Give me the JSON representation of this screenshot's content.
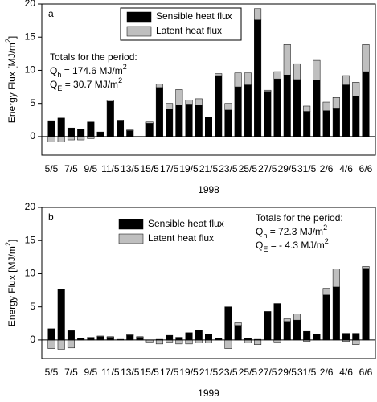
{
  "chart_data": [
    {
      "type": "bar",
      "stacked": true,
      "panel_label": "a",
      "categories": [
        "5/5",
        null,
        "7/5",
        null,
        "9/5",
        null,
        "11/5",
        null,
        "13/5",
        null,
        "15/5",
        null,
        "17/5",
        null,
        "19/5",
        null,
        "21/5",
        null,
        "23/5",
        null,
        "25/5",
        null,
        "27/5",
        null,
        "29/5",
        null,
        "31/5",
        null,
        "2/6",
        null,
        "4/6",
        null,
        "6/6"
      ],
      "series": [
        {
          "name": "Sensible heat flux",
          "color": "#000000",
          "values": [
            2.4,
            2.8,
            1.3,
            1.1,
            2.2,
            0.7,
            5.3,
            2.4,
            0.9,
            0,
            2.0,
            7.4,
            4.2,
            4.8,
            4.9,
            4.8,
            2.9,
            9.2,
            4.0,
            7.5,
            7.8,
            17.6,
            6.8,
            8.7,
            9.3,
            8.6,
            3.8,
            8.5,
            3.9,
            4.3,
            7.8,
            6.1,
            9.8
          ]
        },
        {
          "name": "Latent heat flux",
          "color": "#bfbfbf",
          "values": [
            -0.8,
            -0.8,
            -0.5,
            -0.5,
            -0.3,
            -0.1,
            0.2,
            0.1,
            0.1,
            -0.1,
            0.2,
            0.5,
            0.8,
            2.3,
            0.6,
            0.9,
            0,
            0.3,
            1.0,
            2.1,
            1.8,
            1.7,
            0.2,
            1.1,
            4.6,
            2.4,
            0.8,
            3.0,
            1.3,
            1.6,
            1.4,
            2.1,
            4.1
          ]
        }
      ],
      "ylim": [
        -2.8,
        20
      ],
      "yticks": [
        0,
        5,
        10,
        15,
        20
      ],
      "xlabel": "1998",
      "ylabel": [
        "Energy Flux [MJ/m",
        {
          "sup": "2"
        },
        "]"
      ],
      "legend_frame": true,
      "annotations": [
        [
          "Totals for the period:"
        ],
        [
          "Q",
          {
            "sub": "h"
          },
          " = 174.6 MJ/m",
          {
            "sup": "2"
          }
        ],
        [
          "Q",
          {
            "sub": "E"
          },
          " = 30.7 MJ/m",
          {
            "sup": "2"
          }
        ]
      ]
    },
    {
      "type": "bar",
      "stacked": true,
      "panel_label": "b",
      "categories": [
        "5/5",
        null,
        "7/5",
        null,
        "9/5",
        null,
        "11/5",
        null,
        "13/5",
        null,
        "15/5",
        null,
        "17/5",
        null,
        "19/5",
        null,
        "21/5",
        null,
        "23/5",
        null,
        "25/5",
        null,
        "27/5",
        null,
        "29/5",
        null,
        "31/5",
        null,
        "2/6",
        null,
        "4/6",
        null,
        "6/6"
      ],
      "series": [
        {
          "name": "Sensible heat flux",
          "color": "#000000",
          "values": [
            1.7,
            7.6,
            1.4,
            0.3,
            0.3,
            0.5,
            0.4,
            0.1,
            0.7,
            0.4,
            0,
            0.1,
            0.7,
            0.4,
            1.1,
            1.5,
            0.9,
            0.3,
            5.0,
            2.2,
            0.2,
            0.1,
            4.3,
            5.5,
            2.8,
            3.0,
            1.3,
            0.9,
            6.8,
            8.0,
            1.0,
            1.0,
            10.8
          ]
        },
        {
          "name": "Latent heat flux",
          "color": "#bfbfbf",
          "values": [
            -1.3,
            -1.4,
            -1.2,
            0,
            0.1,
            0.1,
            0.1,
            0,
            0.1,
            0.1,
            -0.3,
            -0.6,
            -0.3,
            -0.6,
            -0.6,
            -0.4,
            -0.4,
            0,
            -1.3,
            0.4,
            -0.4,
            -0.7,
            0,
            -0.3,
            0.4,
            0.9,
            -0.2,
            0,
            1.0,
            2.7,
            -0.2,
            -0.7,
            0.3
          ]
        }
      ],
      "ylim": [
        -2.8,
        20
      ],
      "yticks": [
        0,
        5,
        10,
        15,
        20
      ],
      "xlabel": "1999",
      "ylabel": [
        "Energy Flux [MJ/m",
        {
          "sup": "2"
        },
        "]"
      ],
      "legend_frame": false,
      "annotations": [
        [
          "Totals for the period:"
        ],
        [
          "Q",
          {
            "sub": "h"
          },
          " = 72.3 MJ/m",
          {
            "sup": "2"
          }
        ],
        [
          "Q",
          {
            "sub": "E"
          },
          " = - 4.3 MJ/m",
          {
            "sup": "2"
          }
        ]
      ]
    }
  ]
}
